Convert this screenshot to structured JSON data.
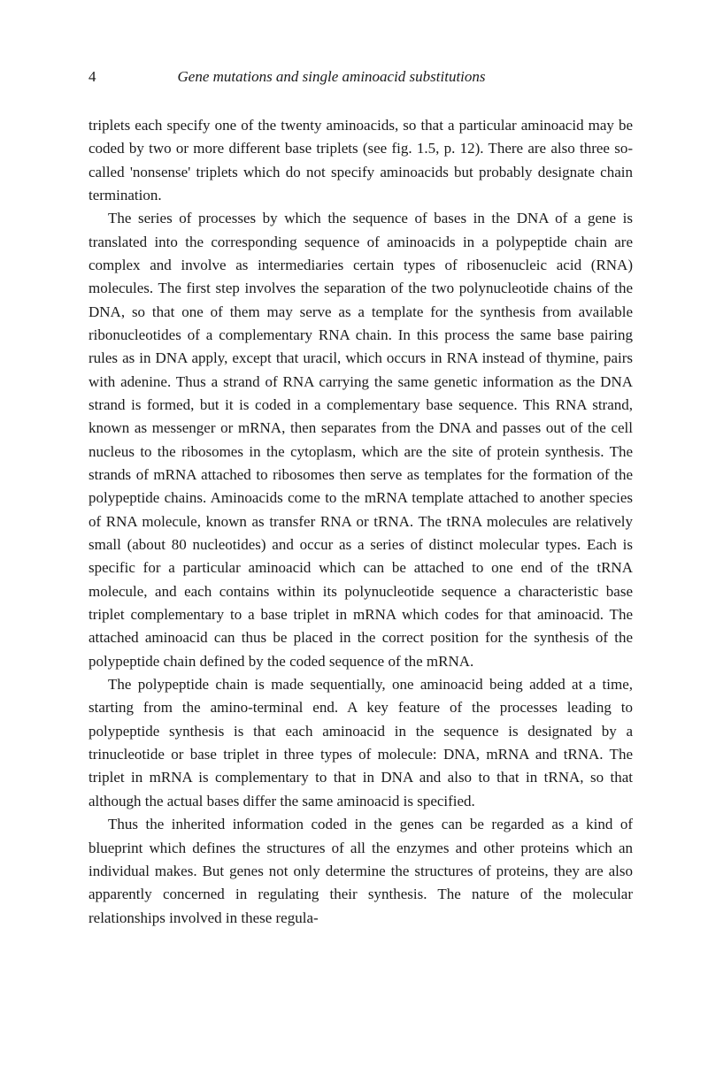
{
  "header": {
    "page_number": "4",
    "title": "Gene mutations and single aminoacid substitutions"
  },
  "paragraphs": {
    "p1": "triplets each specify one of the twenty aminoacids, so that a particular aminoacid may be coded by two or more different base triplets (see fig. 1.5, p. 12). There are also three so-called 'nonsense' triplets which do not specify aminoacids but probably designate chain termination.",
    "p2": "The series of processes by which the sequence of bases in the DNA of a gene is translated into the corresponding sequence of aminoacids in a polypeptide chain are complex and involve as intermediaries certain types of ribosenucleic acid (RNA) molecules. The first step involves the separation of the two polynucleotide chains of the DNA, so that one of them may serve as a template for the synthesis from available ribonucleotides of a complementary RNA chain. In this process the same base pairing rules as in DNA apply, except that uracil, which occurs in RNA instead of thymine, pairs with adenine. Thus a strand of RNA carrying the same genetic information as the DNA strand is formed, but it is coded in a complementary base sequence. This RNA strand, known as messenger or mRNA, then separates from the DNA and passes out of the cell nucleus to the ribosomes in the cytoplasm, which are the site of protein synthesis. The strands of mRNA attached to ribosomes then serve as templates for the formation of the polypeptide chains. Aminoacids come to the mRNA template attached to another species of RNA molecule, known as transfer RNA or tRNA. The tRNA molecules are relatively small (about 80 nucleotides) and occur as a series of distinct molecular types. Each is specific for a particular aminoacid which can be attached to one end of the tRNA molecule, and each contains within its polynucleotide sequence a characteristic base triplet complementary to a base triplet in mRNA which codes for that aminoacid. The attached aminoacid can thus be placed in the correct position for the synthesis of the polypeptide chain defined by the coded sequence of the mRNA.",
    "p3": "The polypeptide chain is made sequentially, one aminoacid being added at a time, starting from the amino-terminal end. A key feature of the processes leading to polypeptide synthesis is that each aminoacid in the sequence is designated by a trinucleotide or base triplet in three types of molecule: DNA, mRNA and tRNA. The triplet in mRNA is complementary to that in DNA and also to that in tRNA, so that although the actual bases differ the same aminoacid is specified.",
    "p4": "Thus the inherited information coded in the genes can be regarded as a kind of blueprint which defines the structures of all the enzymes and other proteins which an individual makes. But genes not only determine the structures of proteins, they are also apparently concerned in regulating their synthesis. The nature of the molecular relationships involved in these regula-"
  }
}
